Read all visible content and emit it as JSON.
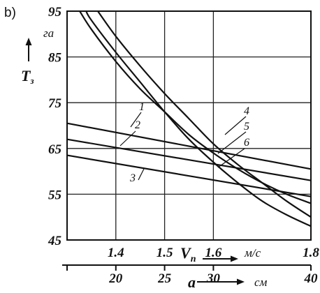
{
  "chart_data": {
    "type": "line",
    "panel_label": "b)",
    "y_axis": {
      "label": "T",
      "label_subscript": "з",
      "unit": "га",
      "ticks": [
        45,
        55,
        65,
        75,
        85,
        95
      ],
      "range": [
        45,
        95
      ]
    },
    "x_axis_top": {
      "label": "V",
      "label_subscript": "п",
      "unit": "м/с",
      "ticks": [
        "1.4",
        "1.5",
        "1.6",
        "1.8"
      ],
      "tick_values": [
        1.4,
        1.5,
        1.6,
        1.8
      ],
      "range": [
        1.3,
        1.8
      ]
    },
    "x_axis_bottom": {
      "label": "a",
      "unit": "см",
      "ticks": [
        "20",
        "25",
        "30",
        "40"
      ],
      "tick_values": [
        20,
        25,
        30,
        40
      ],
      "range": [
        15,
        40
      ]
    },
    "grid": true,
    "legend": "numbered labels on curves",
    "series": [
      {
        "name": "1",
        "x": [
          1.3,
          1.8
        ],
        "y": [
          70.5,
          60.5
        ]
      },
      {
        "name": "2",
        "x": [
          1.3,
          1.8
        ],
        "y": [
          67,
          58
        ]
      },
      {
        "name": "3",
        "x": [
          1.3,
          1.8
        ],
        "y": [
          63.5,
          54.5
        ]
      },
      {
        "name": "4",
        "x": [
          1.326,
          1.35,
          1.4,
          1.45,
          1.5,
          1.55,
          1.6,
          1.65,
          1.7,
          1.75,
          1.8
        ],
        "y": [
          95,
          91,
          84,
          78,
          73,
          68,
          64,
          60.5,
          57.5,
          55,
          53
        ]
      },
      {
        "name": "5",
        "x": [
          1.363,
          1.4,
          1.45,
          1.5,
          1.55,
          1.6,
          1.65,
          1.7,
          1.75,
          1.8
        ],
        "y": [
          95,
          89.5,
          83,
          77,
          71.5,
          66,
          61.5,
          57.5,
          53.5,
          50
        ]
      },
      {
        "name": "6",
        "x": [
          1.339,
          1.35,
          1.4,
          1.45,
          1.5,
          1.55,
          1.6,
          1.65,
          1.7,
          1.75,
          1.8
        ],
        "y": [
          95,
          93,
          86,
          79.5,
          73,
          67,
          62,
          57.5,
          53.5,
          50.5,
          48
        ]
      }
    ]
  }
}
